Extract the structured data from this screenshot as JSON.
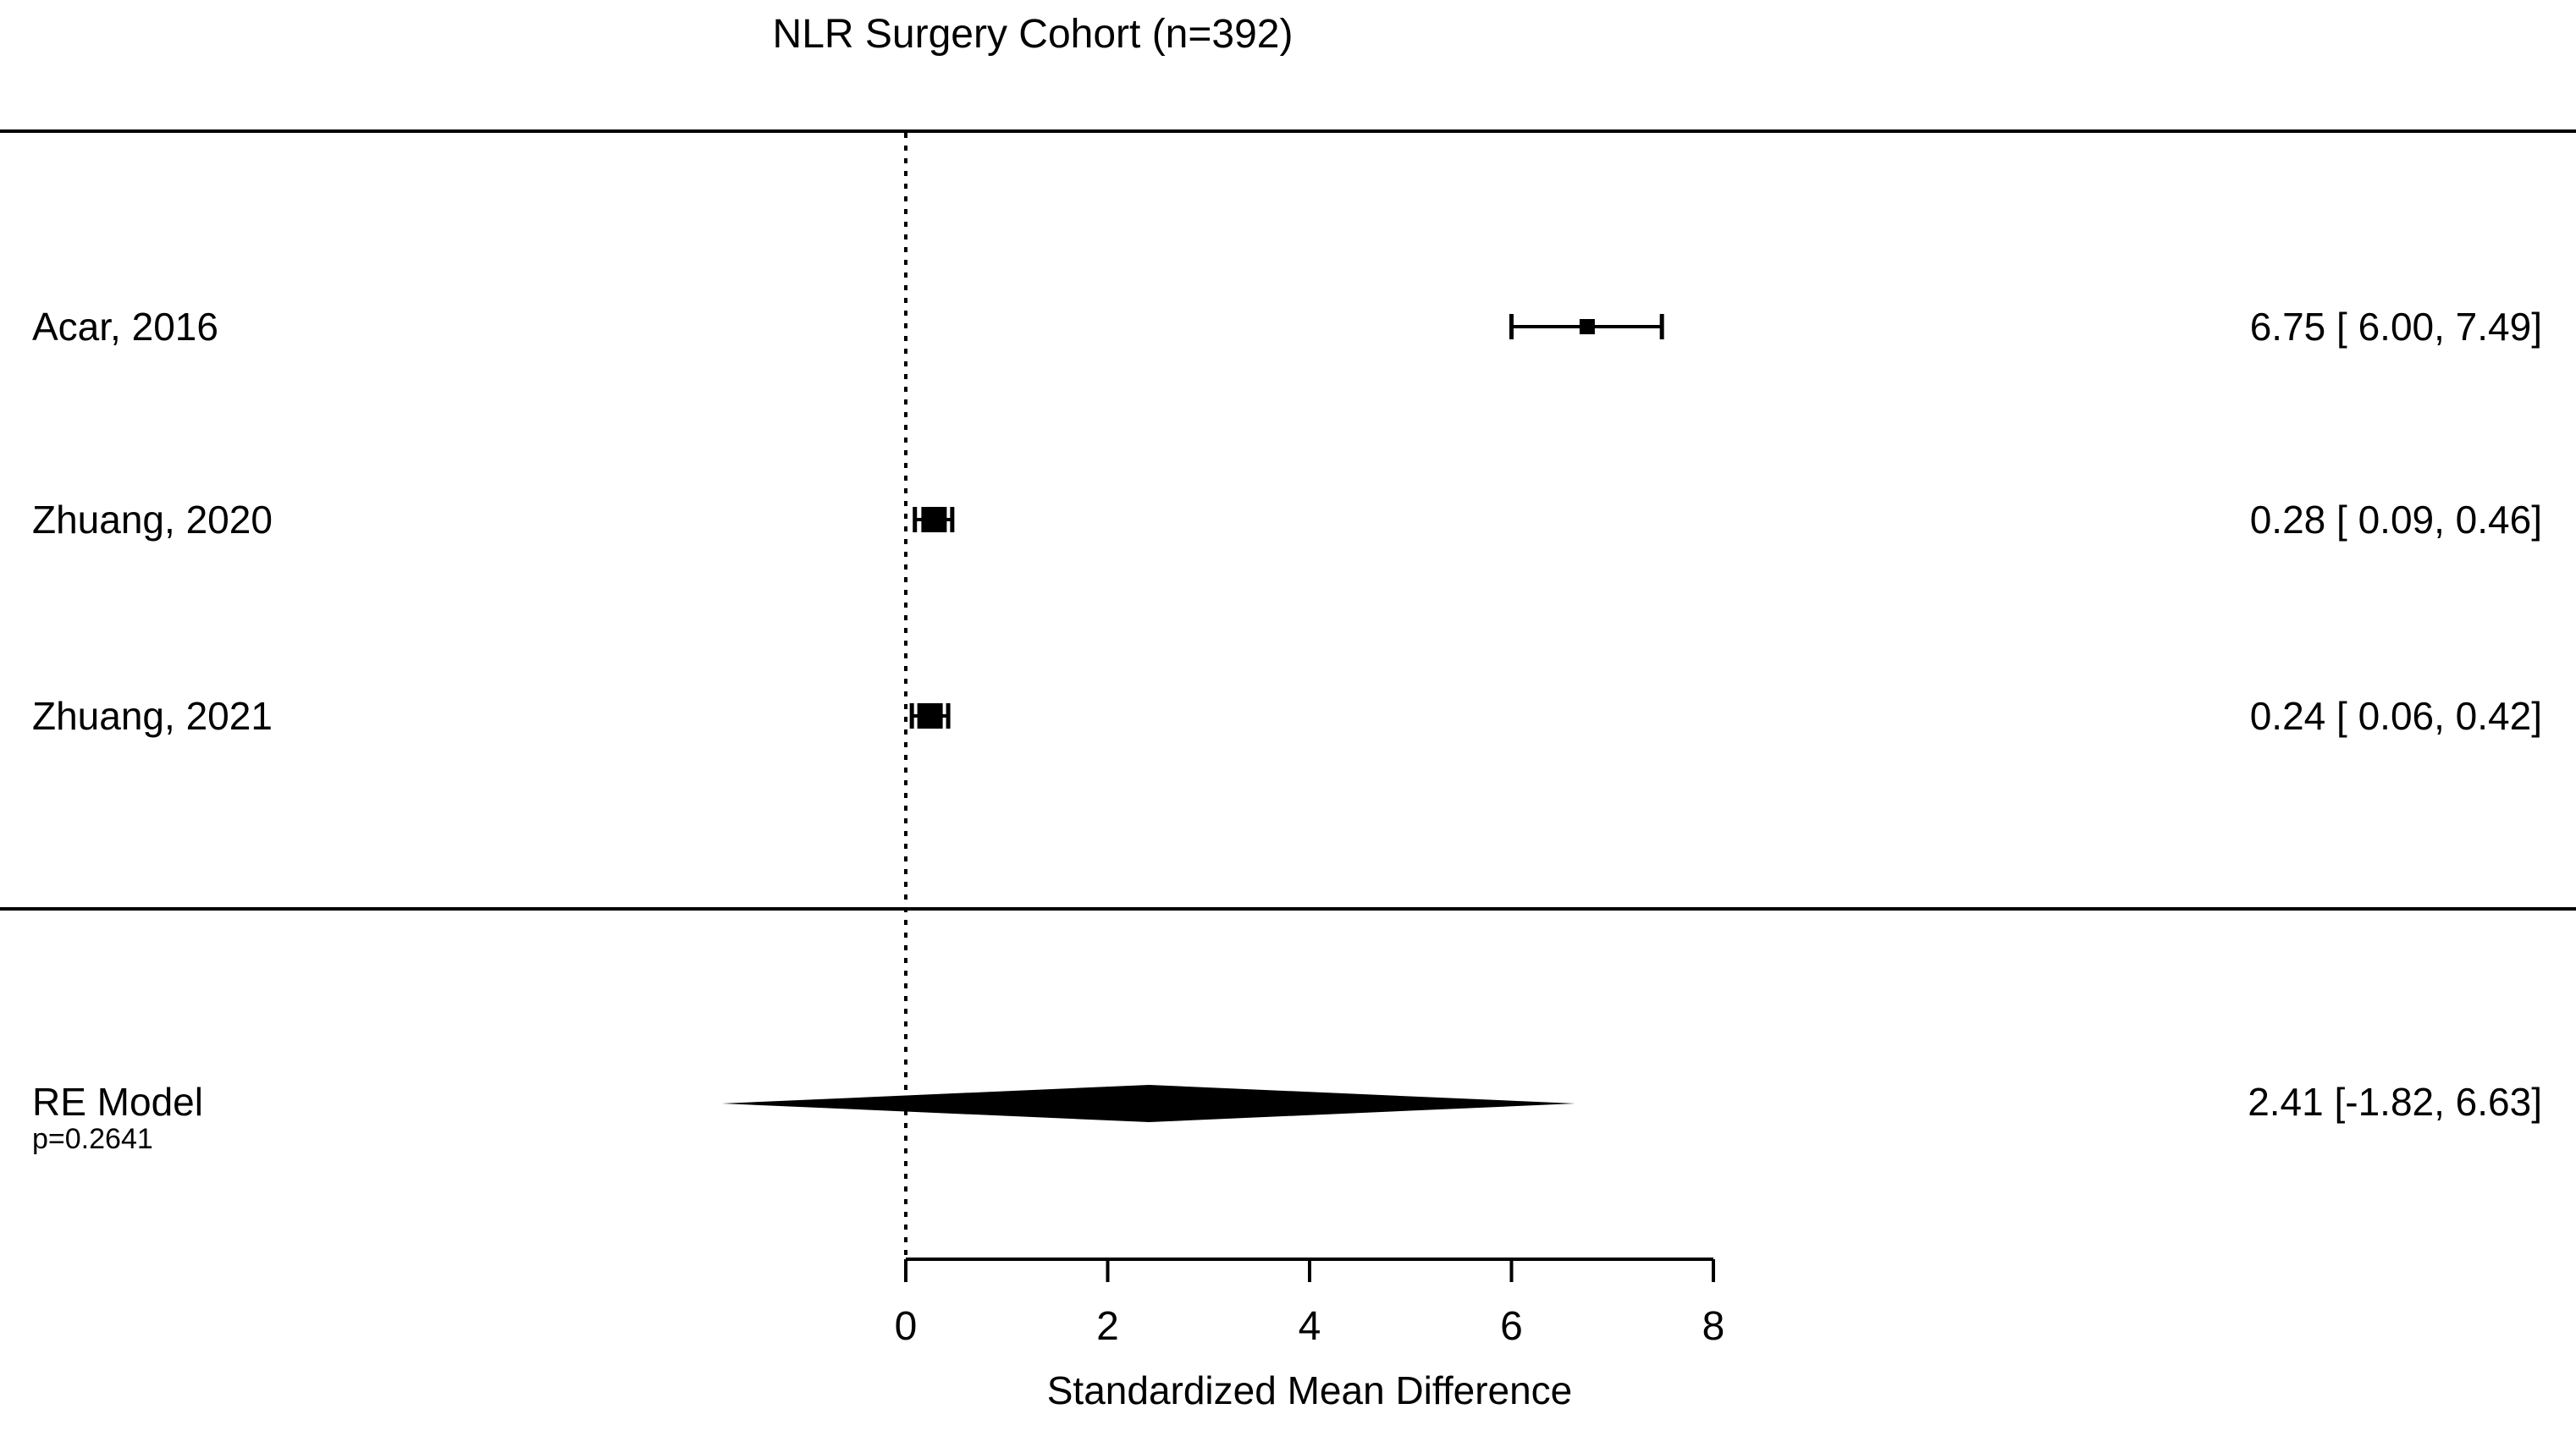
{
  "chart_data": {
    "type": "forest",
    "title": "NLR Surgery Cohort (n=392)",
    "xlabel": "Standardized Mean Difference",
    "x_ticks": [
      0,
      2,
      4,
      6,
      8
    ],
    "xlim": [
      0,
      8
    ],
    "reference_line_x": 0,
    "grid": false,
    "annotation_format": "estimate [ci_low, ci_high]",
    "studies": [
      {
        "label": "Acar, 2016",
        "estimate": 6.75,
        "ci_low": 6.0,
        "ci_high": 7.49,
        "annotation": "6.75 [ 6.00, 7.49]",
        "marker_size_px": 18
      },
      {
        "label": "Zhuang, 2020",
        "estimate": 0.28,
        "ci_low": 0.09,
        "ci_high": 0.46,
        "annotation": "0.28 [ 0.09, 0.46]",
        "marker_size_px": 30
      },
      {
        "label": "Zhuang, 2021",
        "estimate": 0.24,
        "ci_low": 0.06,
        "ci_high": 0.42,
        "annotation": "0.24 [ 0.06, 0.42]",
        "marker_size_px": 30
      }
    ],
    "summary": {
      "label": "RE Model",
      "p_label": "p=0.2641",
      "estimate": 2.41,
      "ci_low": -1.82,
      "ci_high": 6.63,
      "annotation": "2.41 [-1.82, 6.63]"
    },
    "colors": {
      "foreground": "#000000",
      "background": "#ffffff"
    }
  }
}
